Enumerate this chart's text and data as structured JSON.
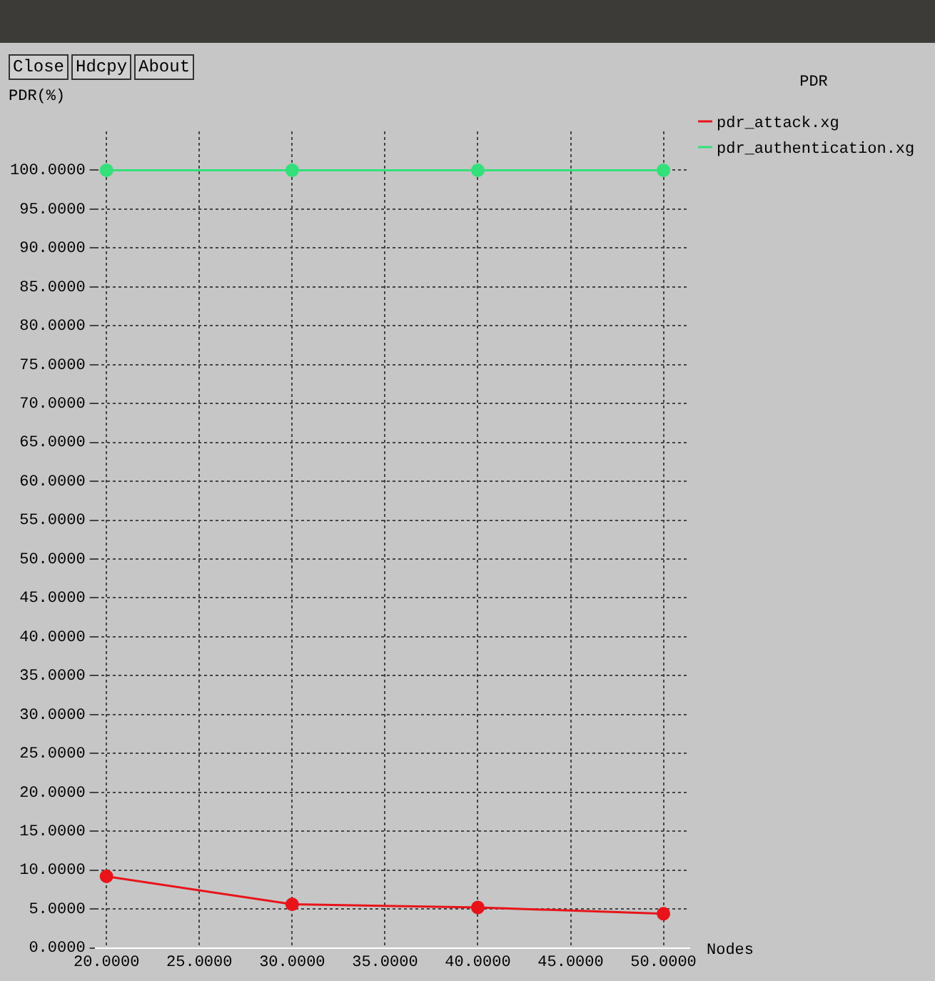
{
  "chart_data": {
    "type": "line",
    "title": "PDR",
    "xlabel": "Nodes",
    "ylabel": "PDR(%)",
    "x": [
      20,
      30,
      40,
      50
    ],
    "series": [
      {
        "name": "pdr_attack.xg",
        "color": "#e8141a",
        "values": [
          9.2,
          5.6,
          5.2,
          4.4
        ]
      },
      {
        "name": "pdr_authentication.xg",
        "color": "#33e07a",
        "values": [
          100,
          100,
          100,
          100
        ]
      }
    ],
    "xlim": [
      19.4,
      51.4
    ],
    "ylim": [
      0,
      105
    ],
    "xticks": [
      {
        "value": 20,
        "label": "20.0000"
      },
      {
        "value": 25,
        "label": "25.0000"
      },
      {
        "value": 30,
        "label": "30.0000"
      },
      {
        "value": 35,
        "label": "35.0000"
      },
      {
        "value": 40,
        "label": "40.0000"
      },
      {
        "value": 45,
        "label": "45.0000"
      },
      {
        "value": 50,
        "label": "50.0000"
      }
    ],
    "yticks": [
      {
        "value": 0,
        "label": "0.0000"
      },
      {
        "value": 5,
        "label": "5.0000"
      },
      {
        "value": 10,
        "label": "10.0000"
      },
      {
        "value": 15,
        "label": "15.0000"
      },
      {
        "value": 20,
        "label": "20.0000"
      },
      {
        "value": 25,
        "label": "25.0000"
      },
      {
        "value": 30,
        "label": "30.0000"
      },
      {
        "value": 35,
        "label": "35.0000"
      },
      {
        "value": 40,
        "label": "40.0000"
      },
      {
        "value": 45,
        "label": "45.0000"
      },
      {
        "value": 50,
        "label": "50.0000"
      },
      {
        "value": 55,
        "label": "55.0000"
      },
      {
        "value": 60,
        "label": "60.0000"
      },
      {
        "value": 65,
        "label": "65.0000"
      },
      {
        "value": 70,
        "label": "70.0000"
      },
      {
        "value": 75,
        "label": "75.0000"
      },
      {
        "value": 80,
        "label": "80.0000"
      },
      {
        "value": 85,
        "label": "85.0000"
      },
      {
        "value": 90,
        "label": "90.0000"
      },
      {
        "value": 95,
        "label": "95.0000"
      },
      {
        "value": 100,
        "label": "100.0000"
      }
    ],
    "annotations": [
      "Close",
      "Hdcpy",
      "About"
    ],
    "grid": true,
    "legend": "top right",
    "marker": "circle",
    "line_style": "solid"
  }
}
